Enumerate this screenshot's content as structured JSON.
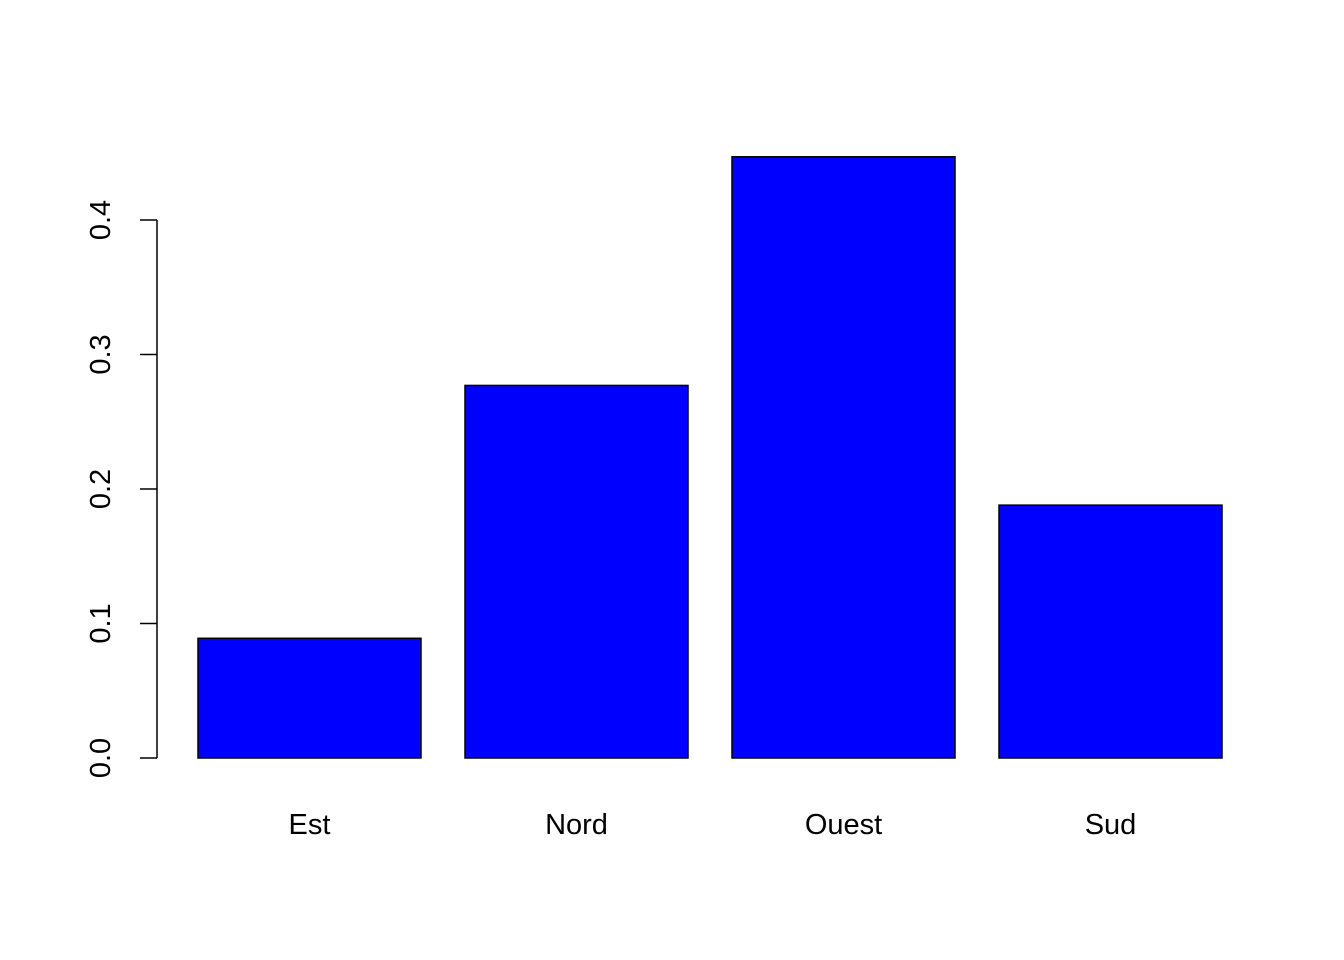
{
  "chart_data": {
    "type": "bar",
    "categories": [
      "Est",
      "Nord",
      "Ouest",
      "Sud"
    ],
    "values": [
      0.089,
      0.277,
      0.447,
      0.188
    ],
    "ylim": [
      0,
      0.4
    ],
    "yticks": [
      "0.0",
      "0.1",
      "0.2",
      "0.3",
      "0.4"
    ],
    "title": "",
    "xlabel": "",
    "ylabel": "",
    "grid": false,
    "legend": "none",
    "colors": {
      "bar_fill": "#0000ff",
      "bar_stroke": "#000000",
      "axis": "#000000"
    }
  }
}
